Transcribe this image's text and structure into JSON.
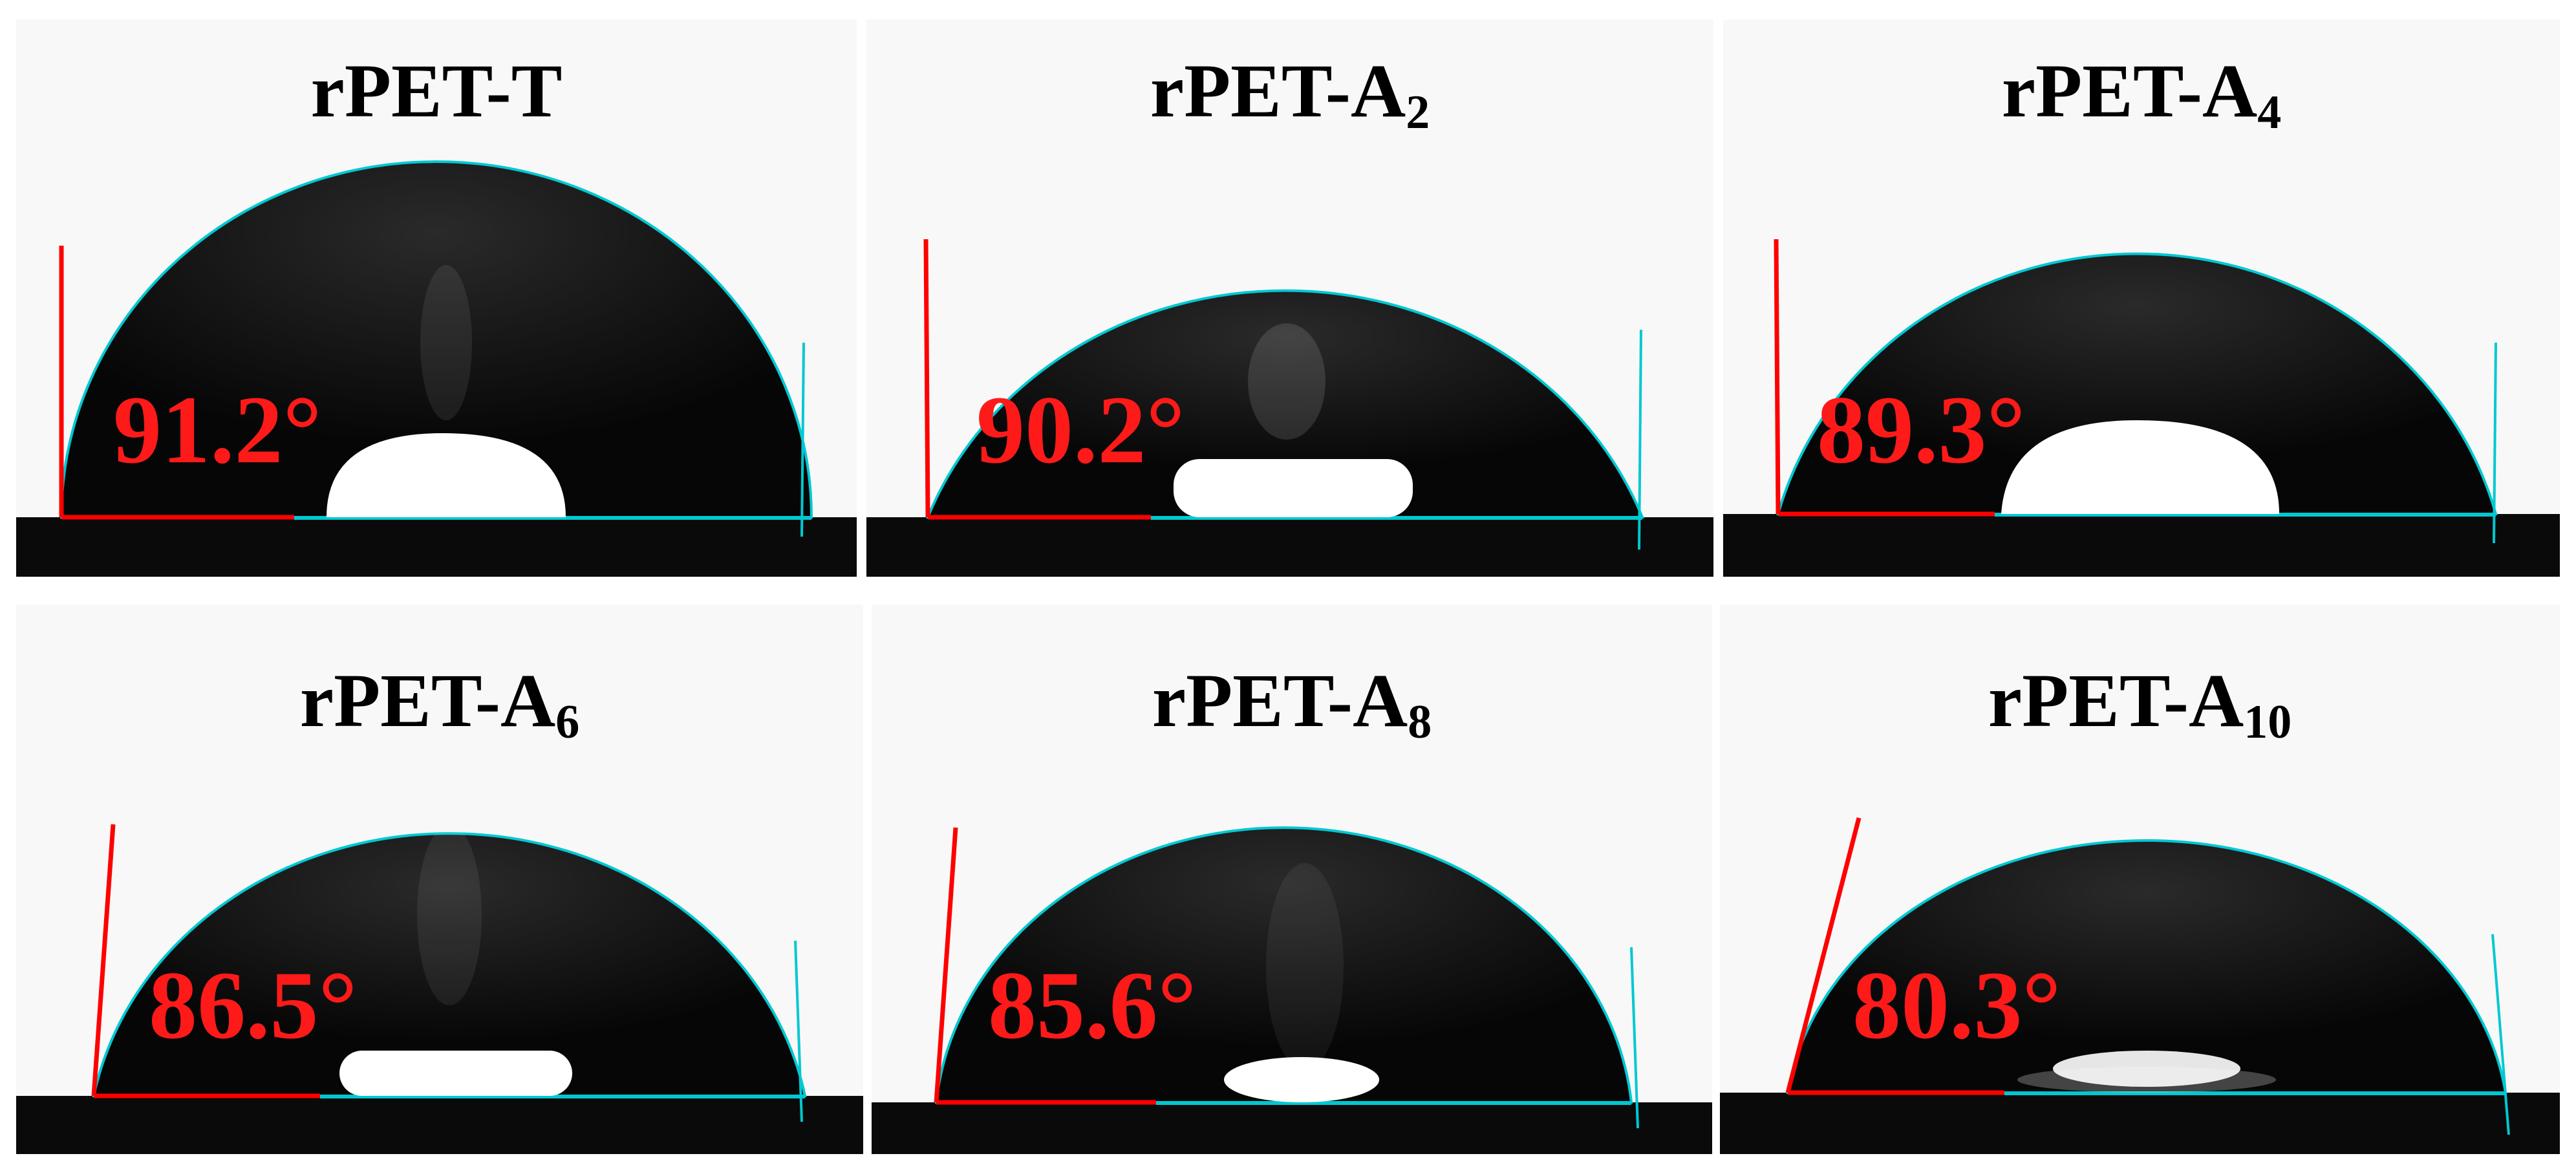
{
  "figure": {
    "panels": [
      {
        "base": "rPET-T",
        "sub": "",
        "contact_angle": "91.2°"
      },
      {
        "base": "rPET-A",
        "sub": "2",
        "contact_angle": "90.2°"
      },
      {
        "base": "rPET-A",
        "sub": "4",
        "contact_angle": "89.3°"
      },
      {
        "base": "rPET-A",
        "sub": "6",
        "contact_angle": "86.5°"
      },
      {
        "base": "rPET-A",
        "sub": "8",
        "contact_angle": "85.6°"
      },
      {
        "base": "rPET-A",
        "sub": "10",
        "contact_angle": "80.3°"
      }
    ]
  },
  "colors": {
    "angle_text": "#ff1a1a",
    "angle_line": "#ff0000",
    "contour_line": "#00c8d2",
    "droplet": "#060606",
    "background": "#f8f8f8"
  }
}
